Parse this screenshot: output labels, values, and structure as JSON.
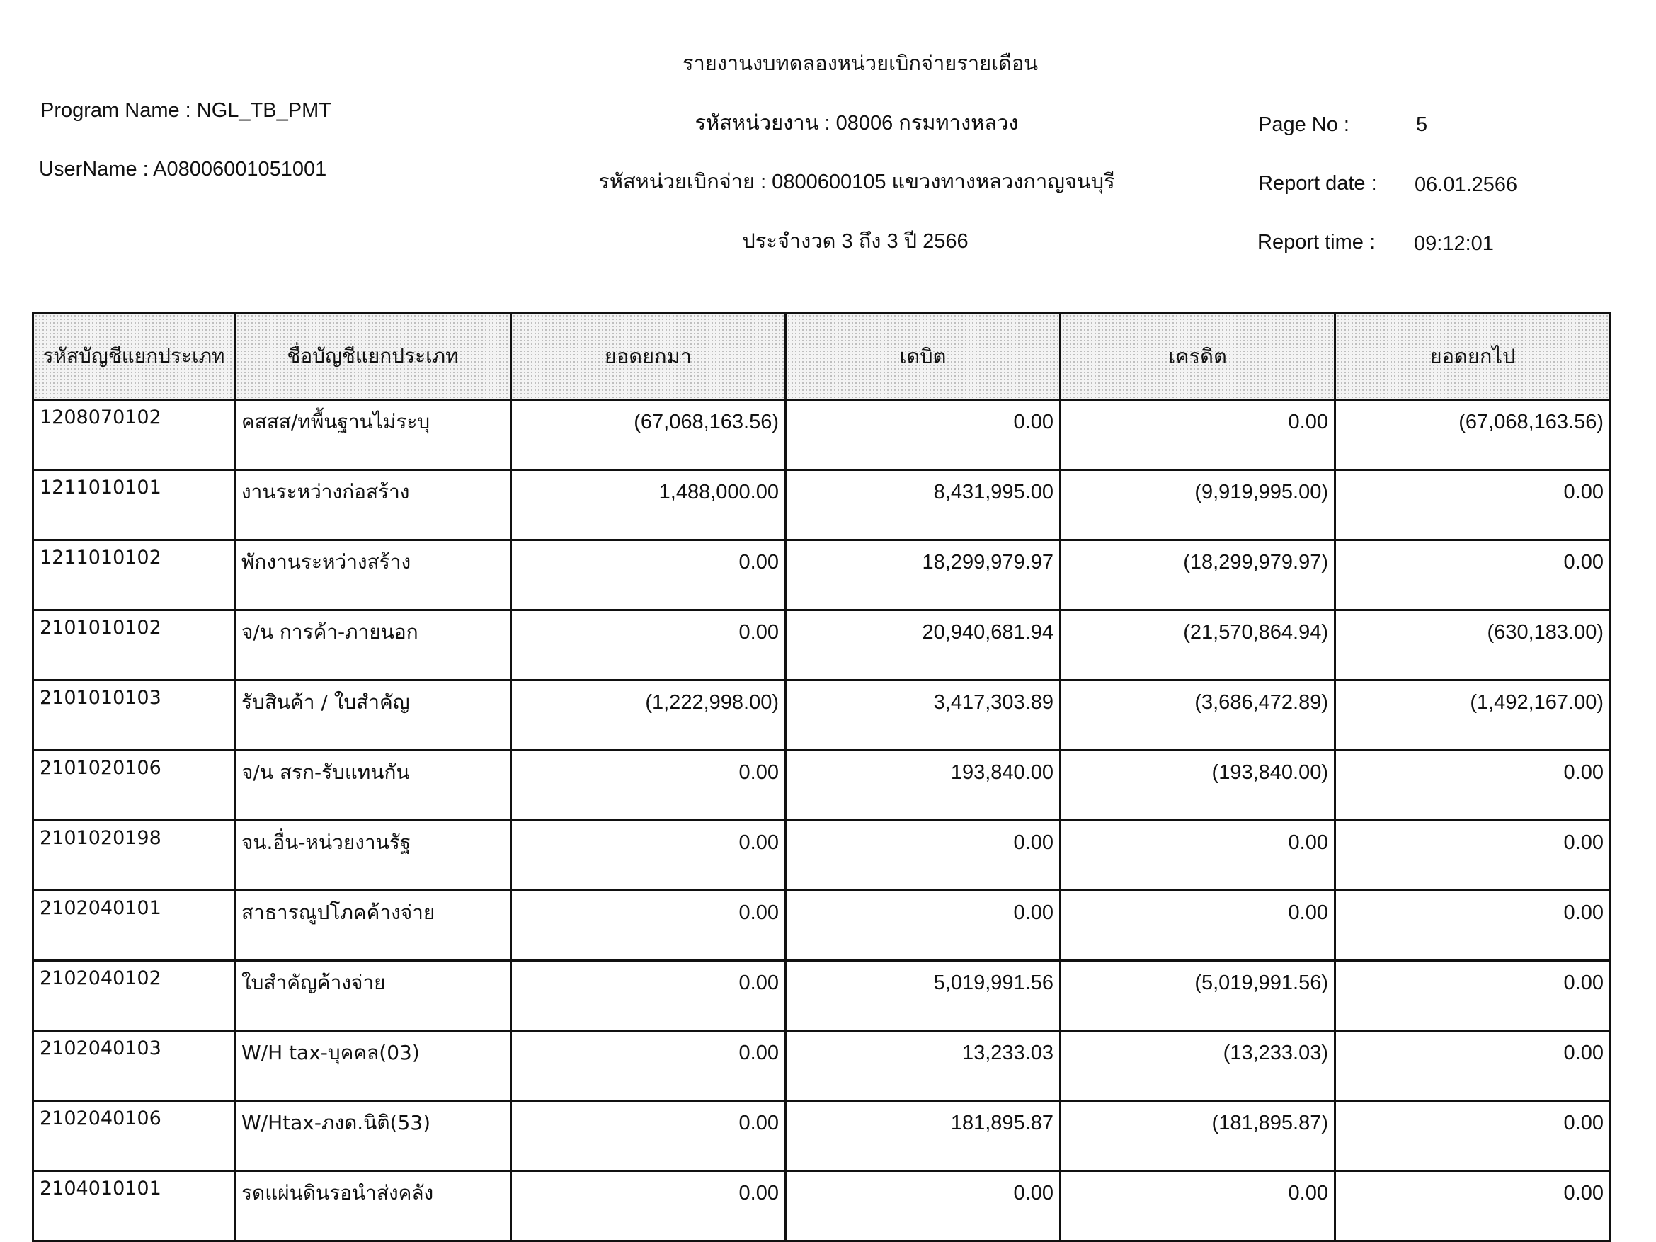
{
  "report": {
    "title": "รายงานงบทดลองหน่วยเบิกจ่ายรายเดือน",
    "agency": "รหัสหน่วยงาน : 08006 กรมทางหลวง",
    "disbursing_unit": "รหัสหน่วยเบิกจ่าย : 0800600105 แขวงทางหลวงกาญจนบุรี",
    "period": "ประจำงวด 3 ถึง 3 ปี 2566",
    "program_name": "Program Name : NGL_TB_PMT",
    "user_name": "UserName : A08006001051001",
    "page_no_label": "Page No :",
    "page_no": "5",
    "report_date_label": "Report date :",
    "report_date": "06.01.2566",
    "report_time_label": "Report time :",
    "report_time": "09:12:01"
  },
  "table": {
    "headers": [
      "รหัสบัญชีแยกประเภท",
      "ชื่อบัญชีแยกประเภท",
      "ยอดยกมา",
      "เดบิต",
      "เครดิต",
      "ยอดยกไป"
    ],
    "rows": [
      [
        "1208070102",
        "คสสส/ทพื้นฐานไม่ระบุ",
        "(67,068,163.56)",
        "0.00",
        "0.00",
        "(67,068,163.56)"
      ],
      [
        "1211010101",
        "งานระหว่างก่อสร้าง",
        "1,488,000.00",
        "8,431,995.00",
        "(9,919,995.00)",
        "0.00"
      ],
      [
        "1211010102",
        "พักงานระหว่างสร้าง",
        "0.00",
        "18,299,979.97",
        "(18,299,979.97)",
        "0.00"
      ],
      [
        "2101010102",
        "จ/น การค้า-ภายนอก",
        "0.00",
        "20,940,681.94",
        "(21,570,864.94)",
        "(630,183.00)"
      ],
      [
        "2101010103",
        "รับสินค้า / ใบสำคัญ",
        "(1,222,998.00)",
        "3,417,303.89",
        "(3,686,472.89)",
        "(1,492,167.00)"
      ],
      [
        "2101020106",
        "จ/น สรก-รับแทนกัน",
        "0.00",
        "193,840.00",
        "(193,840.00)",
        "0.00"
      ],
      [
        "2101020198",
        "จน.อื่น-หน่วยงานรัฐ",
        "0.00",
        "0.00",
        "0.00",
        "0.00"
      ],
      [
        "2102040101",
        "สาธารณูปโภคค้างจ่าย",
        "0.00",
        "0.00",
        "0.00",
        "0.00"
      ],
      [
        "2102040102",
        "ใบสำคัญค้างจ่าย",
        "0.00",
        "5,019,991.56",
        "(5,019,991.56)",
        "0.00"
      ],
      [
        "2102040103",
        "W/H tax-บุคคล(03)",
        "0.00",
        "13,233.03",
        "(13,233.03)",
        "0.00"
      ],
      [
        "2102040106",
        "W/Htax-ภงด.นิติ(53)",
        "0.00",
        "181,895.87",
        "(181,895.87)",
        "0.00"
      ],
      [
        "2104010101",
        "รดแผ่นดินรอนำส่งคลัง",
        "0.00",
        "0.00",
        "0.00",
        "0.00"
      ]
    ]
  }
}
